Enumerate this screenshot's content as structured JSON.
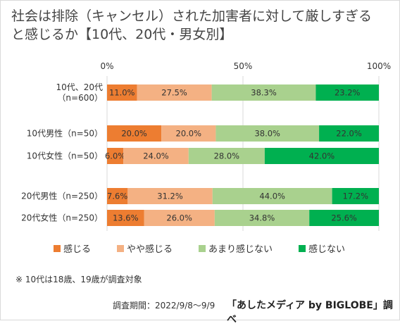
{
  "title": "社会は排除（キャンセル）された加害者に対して厳しすぎる\nと感じるか【10代、20代・男女別】",
  "chart_data": {
    "type": "bar",
    "orientation": "horizontal",
    "stacked": "100%",
    "title": "社会は排除（キャンセル）された加害者に対して厳しすぎると感じるか【10代、20代・男女別】",
    "xlim": [
      0,
      100
    ],
    "x_ticks": [
      "0%",
      "50%",
      "100%"
    ],
    "grid": true,
    "legend_position": "bottom",
    "categories": [
      {
        "label": "10代、20代\n（n=600）",
        "group": 0
      },
      {
        "label": "10代男性（n=50）",
        "group": 1
      },
      {
        "label": "10代女性（n=50）",
        "group": 1
      },
      {
        "label": "20代男性（n=250）",
        "group": 2
      },
      {
        "label": "20代女性（n=250）",
        "group": 2
      }
    ],
    "series": [
      {
        "name": "感じる",
        "color": "#ed7d31",
        "values": [
          11.0,
          20.0,
          6.0,
          7.6,
          13.6
        ],
        "labels": [
          "11.0%",
          "20.0%",
          "6.0%",
          "7.6%",
          "13.6%"
        ]
      },
      {
        "name": "やや感じる",
        "color": "#f4b183",
        "values": [
          27.5,
          20.0,
          24.0,
          31.2,
          26.0
        ],
        "labels": [
          "27.5%",
          "20.0%",
          "24.0%",
          "31.2%",
          "26.0%"
        ]
      },
      {
        "name": "あまり感じない",
        "color": "#a9d18e",
        "values": [
          38.3,
          38.0,
          28.0,
          44.0,
          34.8
        ],
        "labels": [
          "38.3%",
          "38.0%",
          "28.0%",
          "44.0%",
          "34.8%"
        ]
      },
      {
        "name": "感じない",
        "color": "#00b050",
        "values": [
          23.2,
          22.0,
          42.0,
          17.2,
          25.6
        ],
        "labels": [
          "23.2%",
          "22.0%",
          "42.0%",
          "17.2%",
          "25.6%"
        ]
      }
    ]
  },
  "note": "※ 10代は18歳、19歳が調査対象",
  "footer": {
    "period": "調査期間：2022/9/8～9/9",
    "source": "「あしたメディア by BIGLOBE」調べ"
  }
}
